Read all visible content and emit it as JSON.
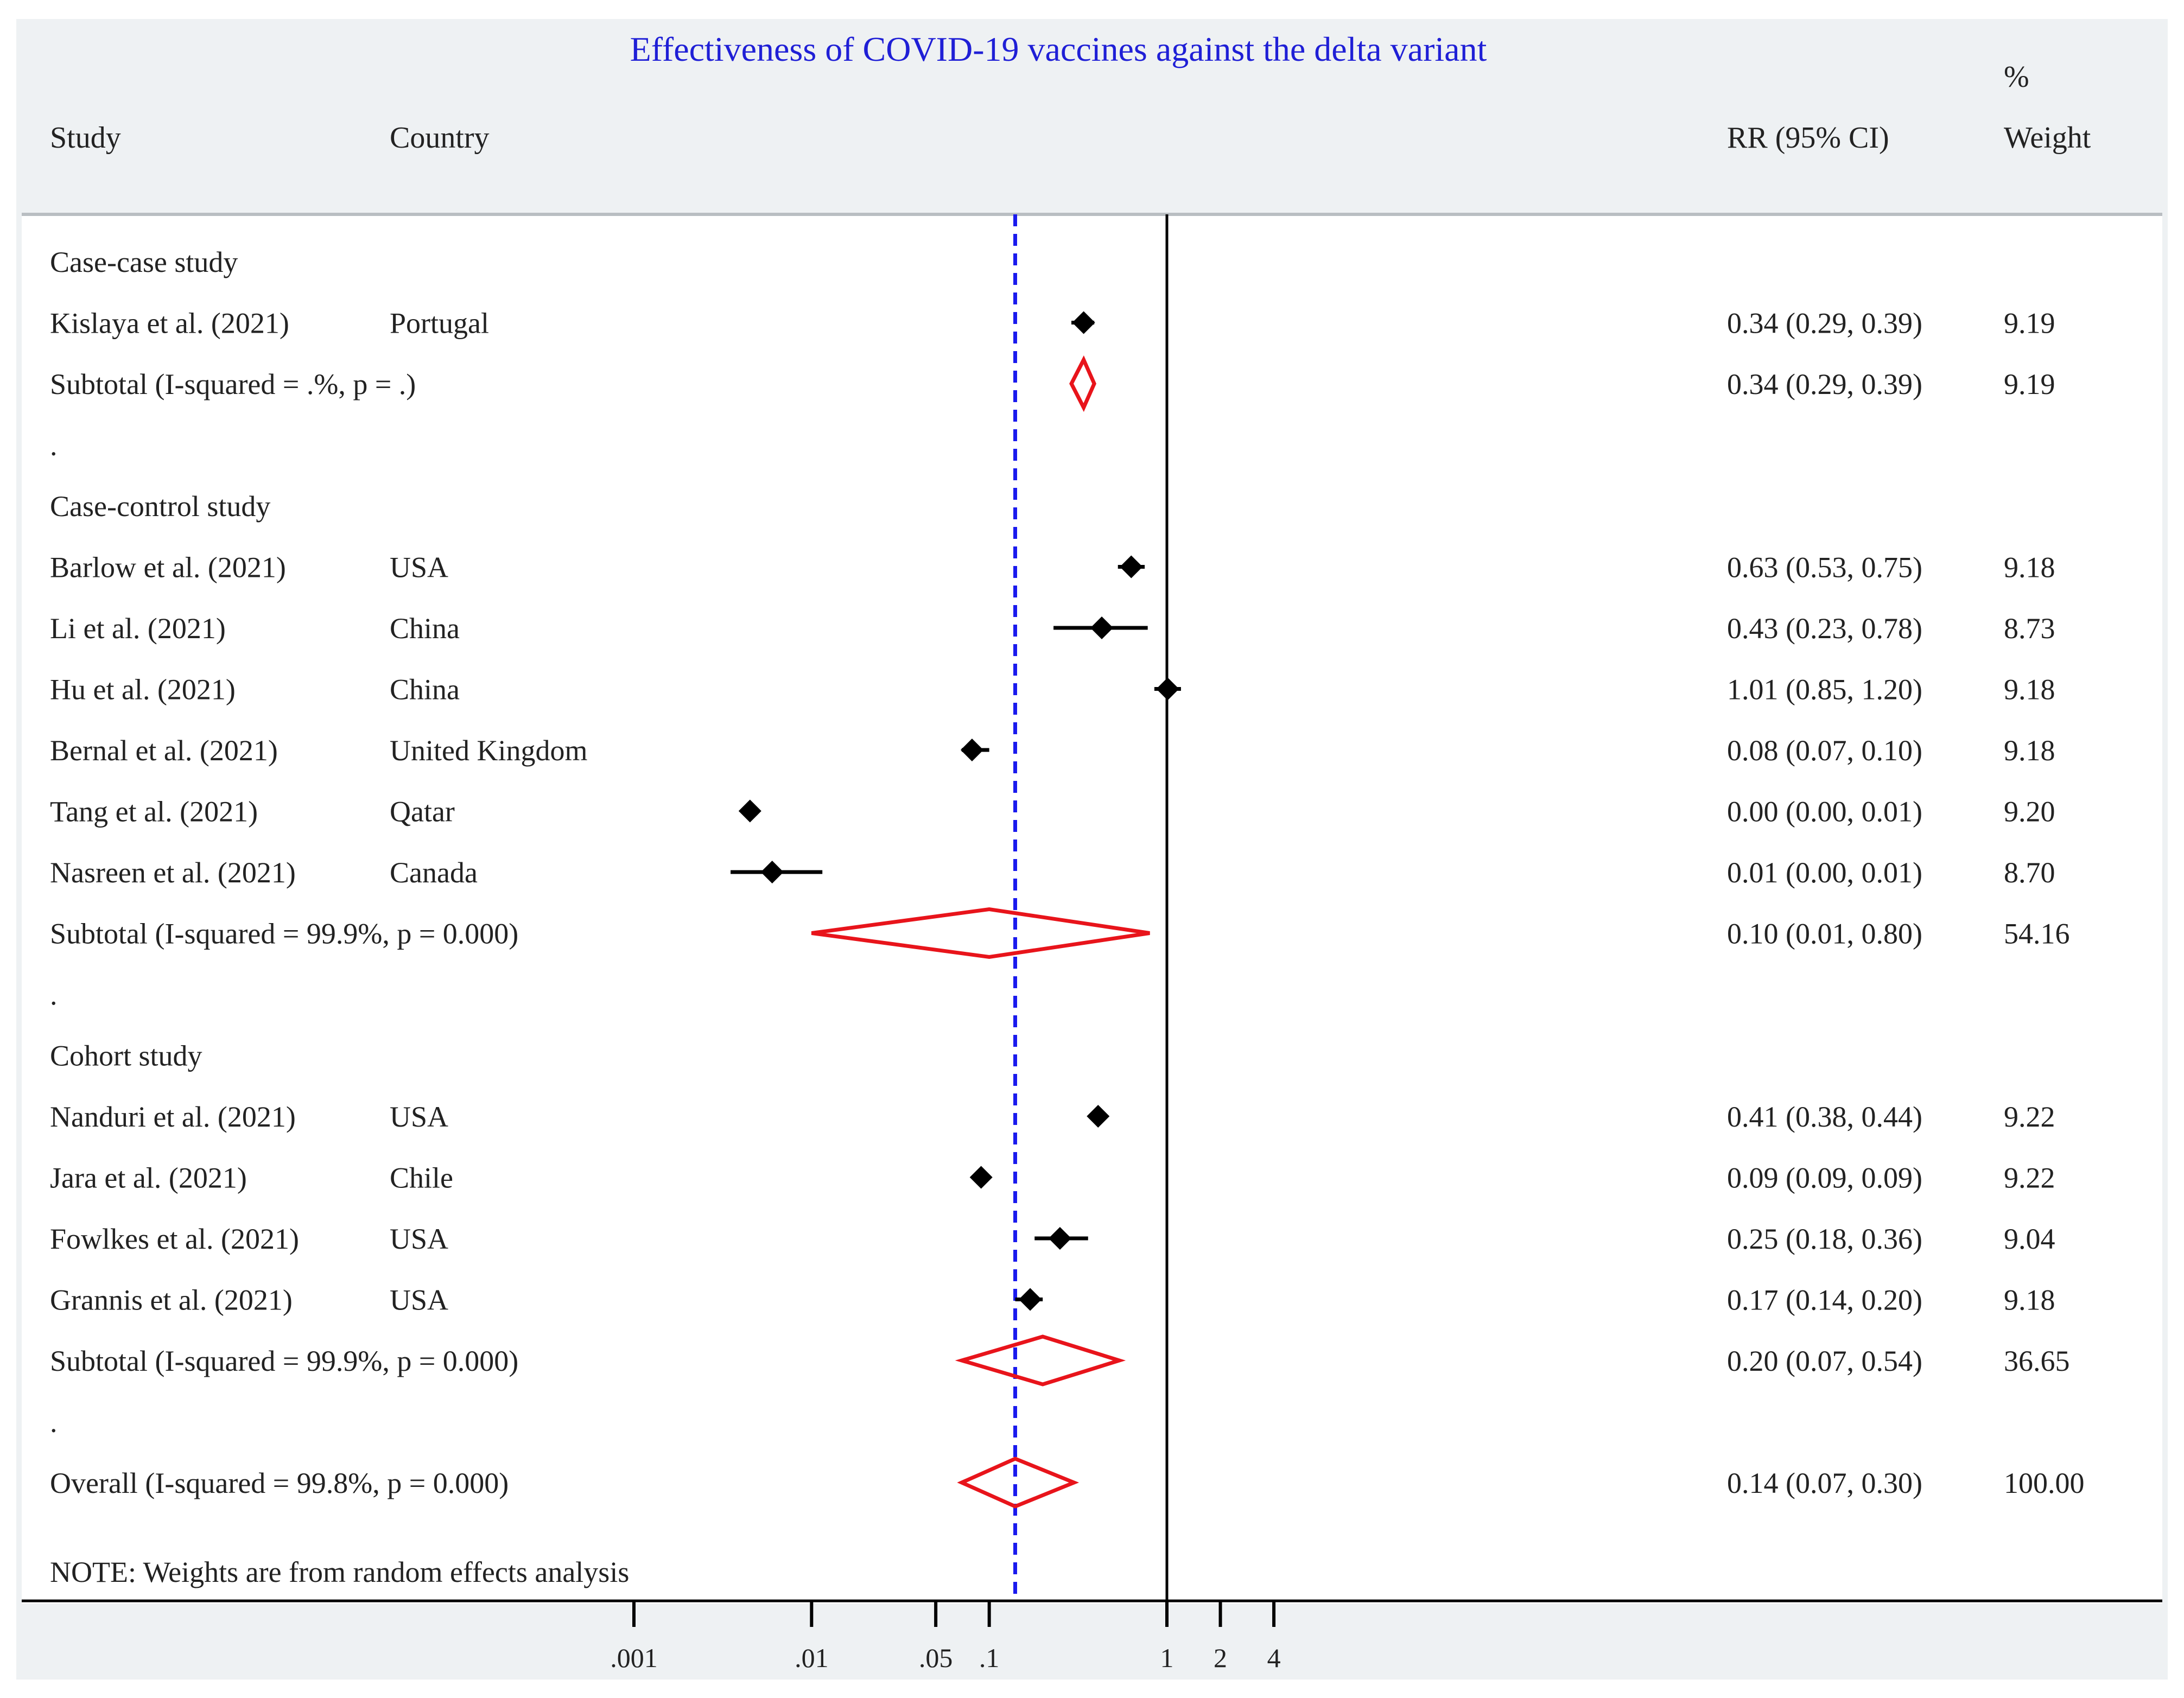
{
  "chart_data": {
    "type": "forest",
    "title": "Effectiveness of COVID-19 vaccines against the delta variant",
    "columns": {
      "study": "Study",
      "country": "Country",
      "rr": "RR (95% CI)",
      "weight_line1": "%",
      "weight_line2": "Weight"
    },
    "x_scale": "log",
    "x_ticks": [
      {
        "value": 0.001,
        "label": ".001"
      },
      {
        "value": 0.01,
        "label": ".01"
      },
      {
        "value": 0.05,
        "label": ".05"
      },
      {
        "value": 0.1,
        "label": ".1"
      },
      {
        "value": 1,
        "label": "1"
      },
      {
        "value": 2,
        "label": "2"
      },
      {
        "value": 4,
        "label": "4"
      }
    ],
    "null_line": 1,
    "overall_line": 0.14,
    "rows": [
      {
        "type": "group",
        "label": "Case-case study"
      },
      {
        "type": "study",
        "study": "Kislaya et al. (2021)",
        "country": "Portugal",
        "rr": 0.34,
        "lo": 0.29,
        "hi": 0.39,
        "ci_text": "0.34 (0.29, 0.39)",
        "weight": "9.19"
      },
      {
        "type": "subtotal",
        "label": "Subtotal  (I-squared = .%, p = .)",
        "rr": 0.34,
        "lo": 0.29,
        "hi": 0.39,
        "ci_text": "0.34 (0.29, 0.39)",
        "weight": "9.19"
      },
      {
        "type": "spacer",
        "label": "."
      },
      {
        "type": "group",
        "label": "Case-control study"
      },
      {
        "type": "study",
        "study": "Barlow et al. (2021)",
        "country": "USA",
        "rr": 0.63,
        "lo": 0.53,
        "hi": 0.75,
        "ci_text": "0.63 (0.53, 0.75)",
        "weight": "9.18"
      },
      {
        "type": "study",
        "study": "Li et al. (2021)",
        "country": "China",
        "rr": 0.43,
        "lo": 0.23,
        "hi": 0.78,
        "ci_text": "0.43 (0.23, 0.78)",
        "weight": "8.73"
      },
      {
        "type": "study",
        "study": "Hu et al. (2021)",
        "country": "China",
        "rr": 1.01,
        "lo": 0.85,
        "hi": 1.2,
        "ci_text": "1.01 (0.85, 1.20)",
        "weight": "9.18"
      },
      {
        "type": "study",
        "study": "Bernal et al. (2021)",
        "country": "United Kingdom",
        "rr": 0.08,
        "lo": 0.07,
        "hi": 0.1,
        "ci_text": "0.08 (0.07, 0.10)",
        "weight": "9.18"
      },
      {
        "type": "study",
        "study": "Tang et al. (2021)",
        "country": "Qatar",
        "rr": 0.0045,
        "lo": 0.004,
        "hi": 0.005,
        "ci_text": "0.00 (0.00, 0.01)",
        "weight": "9.20"
      },
      {
        "type": "study",
        "study": "Nasreen et al. (2021)",
        "country": "Canada",
        "rr": 0.006,
        "lo": 0.0035,
        "hi": 0.0115,
        "ci_text": "0.01 (0.00, 0.01)",
        "weight": "8.70"
      },
      {
        "type": "subtotal",
        "label": "Subtotal  (I-squared = 99.9%, p = 0.000)",
        "rr": 0.1,
        "lo": 0.01,
        "hi": 0.8,
        "ci_text": "0.10 (0.01, 0.80)",
        "weight": "54.16"
      },
      {
        "type": "spacer",
        "label": "."
      },
      {
        "type": "group",
        "label": "Cohort study"
      },
      {
        "type": "study",
        "study": "Nanduri et al. (2021)",
        "country": "USA",
        "rr": 0.41,
        "lo": 0.38,
        "hi": 0.44,
        "ci_text": "0.41 (0.38, 0.44)",
        "weight": "9.22"
      },
      {
        "type": "study",
        "study": "Jara et al. (2021)",
        "country": "Chile",
        "rr": 0.09,
        "lo": 0.09,
        "hi": 0.09,
        "ci_text": "0.09 (0.09, 0.09)",
        "weight": "9.22"
      },
      {
        "type": "study",
        "study": "Fowlkes et al. (2021)",
        "country": "USA",
        "rr": 0.25,
        "lo": 0.18,
        "hi": 0.36,
        "ci_text": "0.25 (0.18, 0.36)",
        "weight": "9.04"
      },
      {
        "type": "study",
        "study": "Grannis et al. (2021)",
        "country": "USA",
        "rr": 0.17,
        "lo": 0.14,
        "hi": 0.2,
        "ci_text": "0.17 (0.14, 0.20)",
        "weight": "9.18"
      },
      {
        "type": "subtotal",
        "label": "Subtotal  (I-squared = 99.9%, p = 0.000)",
        "rr": 0.2,
        "lo": 0.07,
        "hi": 0.54,
        "ci_text": "0.20 (0.07, 0.54)",
        "weight": "36.65"
      },
      {
        "type": "spacer",
        "label": "."
      },
      {
        "type": "overall",
        "label": "Overall  (I-squared = 99.8%, p = 0.000)",
        "rr": 0.14,
        "lo": 0.07,
        "hi": 0.3,
        "ci_text": "0.14 (0.07, 0.30)",
        "weight": "100.00"
      }
    ],
    "note": "NOTE: Weights are from random effects analysis",
    "colors": {
      "title": "#1f1fd6",
      "text": "#222222",
      "point": "#000000",
      "diamond": "#e8141b",
      "overall_line": "#1a1aee",
      "header_bg": "#eef1f3",
      "rule": "#b9bec2"
    }
  }
}
